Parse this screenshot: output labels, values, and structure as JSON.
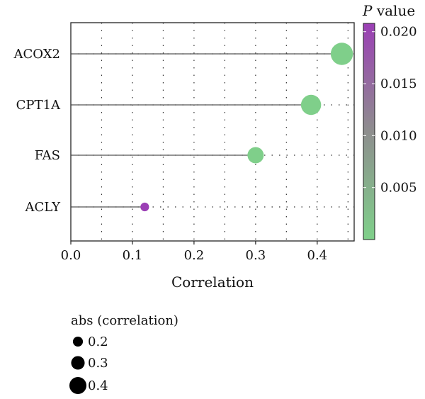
{
  "chart_data": {
    "type": "scatter",
    "subtype": "lollipop",
    "xlabel": "Correlation",
    "ylabel": "",
    "xlim": [
      0,
      0.46
    ],
    "x_ticks": [
      "0.0",
      "0.1",
      "0.2",
      "0.3",
      "0.4"
    ],
    "categories": [
      "ACOX2",
      "CPT1A",
      "FAS",
      "ACLY"
    ],
    "correlation": [
      0.44,
      0.39,
      0.3,
      0.12
    ],
    "p_value": [
      0.0001,
      0.0001,
      0.0001,
      0.021
    ],
    "grid": true,
    "colorbar": {
      "title_italic": "P",
      "title_rest": " value",
      "ticks": [
        "0.020",
        "0.015",
        "0.010",
        "0.005"
      ],
      "tick_values": [
        0.02,
        0.015,
        0.01,
        0.005
      ],
      "range": [
        0.0,
        0.0208
      ],
      "color_low": "#7fd08a",
      "color_mid": "#8e8e8e",
      "color_high": "#9b3fb5",
      "placement": "right"
    },
    "size_legend": {
      "title": "abs (correlation)",
      "entries": [
        "0.2",
        "0.3",
        "0.4"
      ],
      "values": [
        0.2,
        0.3,
        0.4
      ],
      "placement": "bottom-left"
    },
    "colors": {
      "stem": "#555555",
      "grid": "#333333",
      "frame": "#222222"
    }
  }
}
